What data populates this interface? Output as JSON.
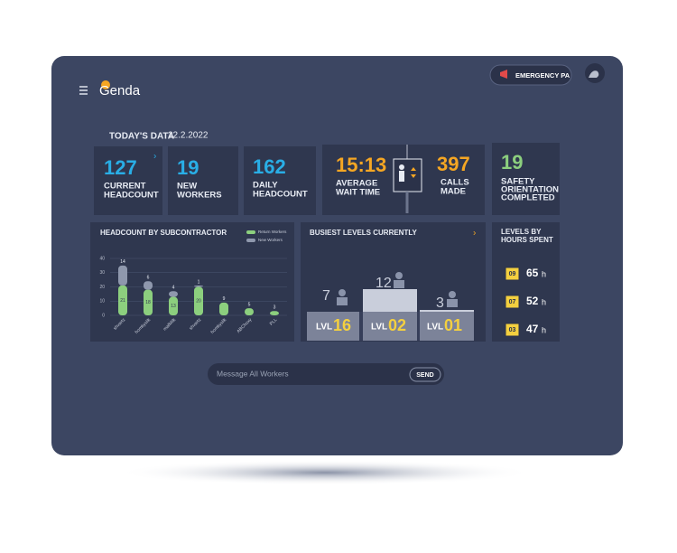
{
  "header": {
    "logo": "Genda",
    "emergency_button": "EMERGENCY PA"
  },
  "today": {
    "label": "TODAY'S DATA",
    "date": "22.2.2022"
  },
  "kpis": [
    {
      "value": "127",
      "label": [
        "CURRENT",
        "HEADCOUNT"
      ]
    },
    {
      "value": "19",
      "label": [
        "NEW",
        "WORKERS"
      ]
    },
    {
      "value": "162",
      "label": [
        "DAILY",
        "HEADCOUNT"
      ]
    },
    {
      "value": "15:13",
      "label": [
        "AVERAGE",
        "WAIT TIME"
      ]
    },
    {
      "value": "397",
      "label": [
        "CALLS",
        "MADE"
      ]
    },
    {
      "value": "19",
      "label": [
        "SAFETY",
        "ORIENTATION",
        "COMPLETED"
      ]
    }
  ],
  "chart_data": {
    "type": "bar",
    "title": "HEADCOUNT BY SUBCONTRACTOR",
    "stacked": true,
    "categories": [
      "shvartz",
      "homkyslik",
      "mafMilk",
      "shvartz",
      "homkyslik",
      "ABChoxy",
      "PLL"
    ],
    "series": [
      {
        "name": "Return Workers",
        "color": "#8ccf7e",
        "values": [
          21,
          18,
          13,
          20,
          9,
          5,
          3
        ]
      },
      {
        "name": "New Workers",
        "color": "#8f98ad",
        "values": [
          14,
          6,
          4,
          1,
          null,
          null,
          null
        ]
      }
    ],
    "ylim": [
      0,
      40
    ],
    "yticks": [
      0,
      10,
      20,
      30,
      40
    ],
    "grid": true
  },
  "busiest": {
    "title": "BUSIEST LEVELS CURRENTLY",
    "levels": [
      {
        "count": "7",
        "prefix": "LVL",
        "level": "16"
      },
      {
        "count": "12",
        "prefix": "LVL",
        "level": "02"
      },
      {
        "count": "3",
        "prefix": "LVL",
        "level": "01"
      }
    ]
  },
  "hours": {
    "title": [
      "LEVELS BY",
      "HOURS SPENT"
    ],
    "rows": [
      {
        "level": "09",
        "value": "65",
        "unit": "h"
      },
      {
        "level": "07",
        "value": "52",
        "unit": "h"
      },
      {
        "level": "03",
        "value": "47",
        "unit": "h"
      }
    ]
  },
  "message": {
    "placeholder": "Message All Workers",
    "button": "SEND"
  }
}
